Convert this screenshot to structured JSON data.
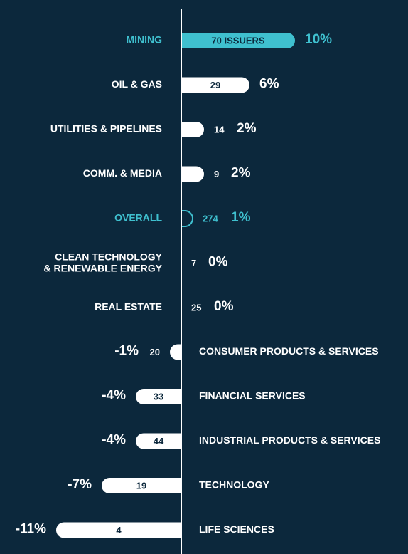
{
  "chart_data": {
    "type": "diverging-bar",
    "categories": [
      "MINING",
      "OIL & GAS",
      "UTILITIES & PIPELINES",
      "COMM. & MEDIA",
      "OVERALL",
      "CLEAN TECHNOLOGY\n& RENEWABLE ENERGY",
      "REAL ESTATE",
      "CONSUMER PRODUCTS & SERVICES",
      "FINANCIAL SERVICES",
      "INDUSTRIAL PRODUCTS & SERVICES",
      "TECHNOLOGY",
      "LIFE SCIENCES"
    ],
    "values": [
      10,
      6,
      2,
      2,
      1,
      0,
      0,
      -1,
      -4,
      -4,
      -7,
      -11
    ],
    "value_labels": [
      "10%",
      "6%",
      "2%",
      "2%",
      "1%",
      "0%",
      "0%",
      "-1%",
      "-4%",
      "-4%",
      "-7%",
      "-11%"
    ],
    "issuers": [
      70,
      29,
      14,
      9,
      274,
      7,
      25,
      20,
      33,
      44,
      19,
      4
    ],
    "issuers_labels": [
      "70 ISSUERS",
      "29",
      "14",
      "9",
      "274",
      "7",
      "25",
      "20",
      "33",
      "44",
      "19",
      "4"
    ],
    "bar_colors": [
      "#3fc0cf",
      "#ffffff",
      "#ffffff",
      "#ffffff",
      "none",
      "#ffffff",
      "#ffffff",
      "#ffffff",
      "#ffffff",
      "#ffffff",
      "#ffffff",
      "#ffffff"
    ],
    "label_colors": [
      "#3fc0cf",
      "#ffffff",
      "#ffffff",
      "#ffffff",
      "#3fc0cf",
      "#ffffff",
      "#ffffff",
      "#ffffff",
      "#ffffff",
      "#ffffff",
      "#ffffff",
      "#ffffff"
    ]
  }
}
